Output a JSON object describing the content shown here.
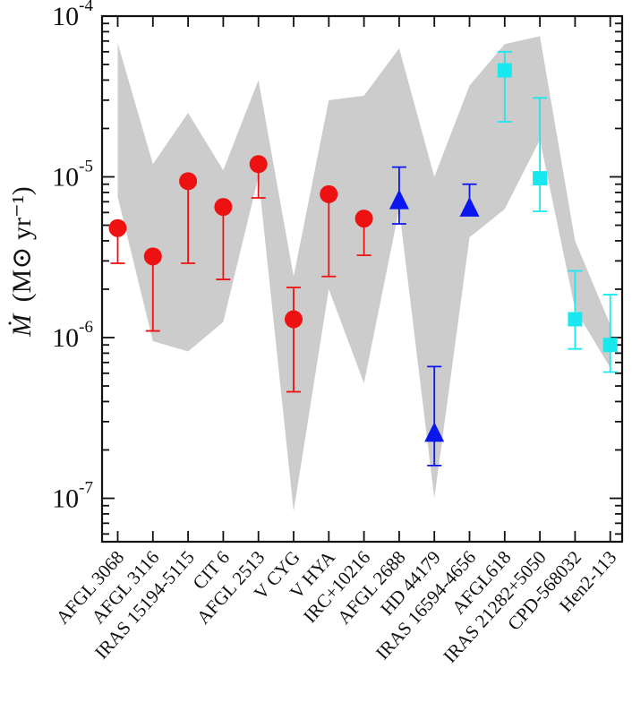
{
  "chart_data": {
    "type": "scatter",
    "title": "",
    "xlabel": "",
    "ylabel": {
      "symbol": "Ṁ",
      "units": "(M⊙ yr⁻¹)"
    },
    "yscale": "log",
    "ylim": [
      4e-08,
      0.0001
    ],
    "grid": false,
    "legend": "none",
    "yticks": [
      {
        "value": 1e-07,
        "base": "10",
        "exp": "-7"
      },
      {
        "value": 1e-06,
        "base": "10",
        "exp": "-6"
      },
      {
        "value": 1e-05,
        "base": "10",
        "exp": "-5"
      },
      {
        "value": 0.0001,
        "base": "10",
        "exp": "-4"
      }
    ],
    "categories": [
      "AFGL 3068",
      "AFGL 3116",
      "IRAS 15194-5115",
      "CIT 6",
      "AFGL 2513",
      "V CYG",
      "V HYA",
      "IRC+10216",
      "AFGL 2688",
      "HD 44179",
      "IRAS 16594-4656",
      "AFGL618",
      "IRAS 21282+5050",
      "CPD-568032",
      "Hen2-113"
    ],
    "band": {
      "color": "#cccccc",
      "upper": [
        6.8e-05,
        1.2e-05,
        2.5e-05,
        1.1e-05,
        4e-05,
        2.4e-06,
        3e-05,
        3.2e-05,
        6.3e-05,
        1e-05,
        3.7e-05,
        6.7e-05,
        7.5e-05,
        4e-06,
        1.2e-06
      ],
      "lower": [
        7.5e-06,
        9.5e-07,
        8.2e-07,
        1.25e-06,
        1e-05,
        8.3e-08,
        2e-06,
        5.2e-07,
        6.3e-06,
        1e-07,
        4.2e-06,
        6.3e-06,
        1.7e-05,
        1.5e-06,
        6.5e-07
      ]
    },
    "series": [
      {
        "marker": "circle",
        "color": "#ee1111",
        "points": [
          {
            "index": 0,
            "y": 4.8e-06,
            "err_low": 2.9e-06,
            "err_high": null
          },
          {
            "index": 1,
            "y": 3.2e-06,
            "err_low": 1.1e-06,
            "err_high": null
          },
          {
            "index": 2,
            "y": 9.4e-06,
            "err_low": 2.9e-06,
            "err_high": null
          },
          {
            "index": 3,
            "y": 6.5e-06,
            "err_low": 2.3e-06,
            "err_high": null
          },
          {
            "index": 4,
            "y": 1.2e-05,
            "err_low": 7.4e-06,
            "err_high": null
          },
          {
            "index": 5,
            "y": 1.3e-06,
            "err_low": 4.6e-07,
            "err_high": 2.05e-06
          },
          {
            "index": 6,
            "y": 7.8e-06,
            "err_low": 2.4e-06,
            "err_high": null
          },
          {
            "index": 7,
            "y": 5.5e-06,
            "err_low": 3.25e-06,
            "err_high": null
          }
        ]
      },
      {
        "marker": "triangle",
        "color": "#0a16ee",
        "points": [
          {
            "index": 8,
            "y": 7e-06,
            "err_low": 5.1e-06,
            "err_high": 1.15e-05
          },
          {
            "index": 9,
            "y": 2.5e-07,
            "err_low": 1.6e-07,
            "err_high": 6.6e-07
          },
          {
            "index": 10,
            "y": 6.3e-06,
            "err_low": null,
            "err_high": 9e-06
          }
        ]
      },
      {
        "marker": "square",
        "color": "#19e8ee",
        "points": [
          {
            "index": 11,
            "y": 4.6e-05,
            "err_low": 2.2e-05,
            "err_high": 6e-05
          },
          {
            "index": 12,
            "y": 9.8e-06,
            "err_low": 6.1e-06,
            "err_high": 3.1e-05
          },
          {
            "index": 13,
            "y": 1.3e-06,
            "err_low": 8.5e-07,
            "err_high": 2.6e-06
          },
          {
            "index": 14,
            "y": 9e-07,
            "err_low": 6.1e-07,
            "err_high": 1.85e-06
          }
        ]
      }
    ]
  }
}
